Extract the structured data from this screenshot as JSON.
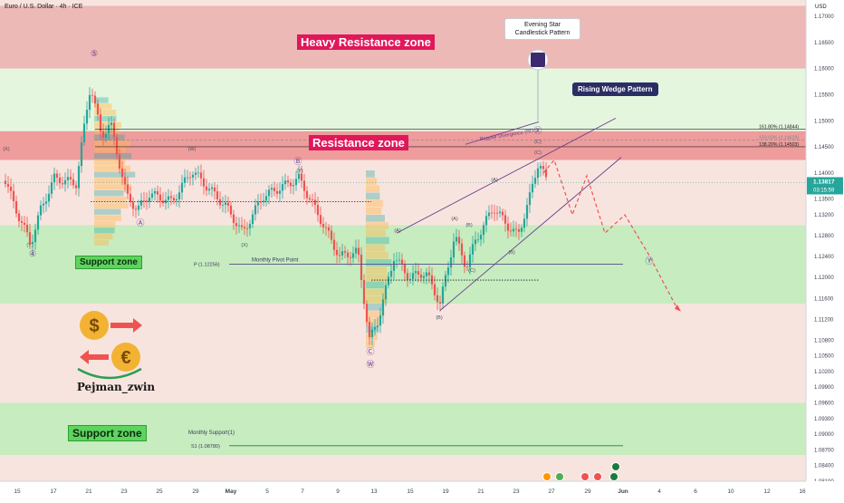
{
  "header": {
    "symbol": "Euro / U.S. Dollar · 4h · ICE"
  },
  "zones": {
    "heavy_resistance": "Heavy Resistance zone",
    "resistance": "Resistance zone",
    "support_upper": "Support zone",
    "support_lower": "Support zone"
  },
  "annotations": {
    "evening_star": "Evening Star Candlestick Pattern",
    "rising_wedge": "Rising Wedge Pattern",
    "regular_divergence": "Regular Divergence (RD-)",
    "monthly_pivot": "Monthly Pivot Point",
    "pivot_label": "P (1.12256)",
    "monthly_support": "Monthly Support(1)",
    "s1_label": "S1 (1.08780)",
    "fib_161": "161.80% (1.14844)",
    "fib_150": "150.00% (1.14628)",
    "fib_138": "138.20% (1.14503)",
    "brand": "Pejman_zwin"
  },
  "price_axis": {
    "currency": "USD",
    "current_price": "1.13817",
    "countdown": "03:15:59",
    "ticks": [
      "1.17000",
      "1.16500",
      "1.16000",
      "1.15500",
      "1.15000",
      "1.14500",
      "1.14000",
      "1.13500",
      "1.13200",
      "1.12800",
      "1.12400",
      "1.12000",
      "1.11600",
      "1.11200",
      "1.10800",
      "1.10500",
      "1.10200",
      "1.09900",
      "1.09600",
      "1.09300",
      "1.09000",
      "1.08700",
      "1.08400",
      "1.08100"
    ]
  },
  "time_axis": {
    "ticks": [
      "15",
      "17",
      "21",
      "23",
      "25",
      "29",
      "May",
      "5",
      "7",
      "9",
      "13",
      "15",
      "19",
      "21",
      "23",
      "27",
      "29",
      "Jun",
      "4",
      "6",
      "10",
      "12",
      "16"
    ]
  },
  "wave_labels": [
    "⑤",
    "(Y)",
    "④",
    "Ⓐ",
    "(X)",
    "(W)",
    "Ⓑ",
    "(Y)",
    "(X)",
    "Ⓒ",
    "Ⓦ",
    "(A)",
    "(B)",
    "(A)",
    "(C)",
    "(B)",
    "(A)",
    "(C)",
    "Ⓧ",
    "(C)",
    "Ⓨ",
    "(B)"
  ],
  "colors": {
    "heavy_resistance": "#ecb9b6",
    "resistance": "#ee9c9c",
    "support": "#c6ecc0",
    "bull": "#26a69a",
    "bear": "#ef5350",
    "accent": "#e0185b",
    "price_tag": "#26a69a"
  },
  "chart_data": {
    "type": "candlestick",
    "title": "Euro / U.S. Dollar · 4h · ICE",
    "y_unit": "USD",
    "ylim": [
      1.081,
      1.172
    ],
    "zones": [
      {
        "name": "Heavy Resistance zone",
        "from": 1.16,
        "to": 1.172
      },
      {
        "name": "Resistance zone",
        "from": 1.1425,
        "to": 1.148
      },
      {
        "name": "Support zone",
        "from": 1.115,
        "to": 1.13
      },
      {
        "name": "Support zone",
        "from": 1.086,
        "to": 1.096
      }
    ],
    "levels": [
      {
        "name": "P (1.12256)",
        "value": 1.12256
      },
      {
        "name": "S1 (1.08780)",
        "value": 1.0878
      },
      {
        "name": "161.80% (1.14844)",
        "value": 1.14844
      },
      {
        "name": "150.00% (1.14628)",
        "value": 1.14628
      },
      {
        "name": "138.20% (1.14503)",
        "value": 1.14503
      }
    ],
    "key_swings": [
      {
        "date": "Apr 21",
        "price": 1.1572,
        "label": "⑤"
      },
      {
        "date": "Apr 29",
        "price": 1.1425,
        "label": "(W)"
      },
      {
        "date": "May 7",
        "price": 1.1395,
        "label": "Ⓑ"
      },
      {
        "date": "May 12",
        "price": 1.1065,
        "label": "Ⓒ"
      },
      {
        "date": "May 19",
        "price": 1.1137,
        "label": "(B)"
      },
      {
        "date": "May 23",
        "price": 1.1375,
        "label": "(A)"
      },
      {
        "date": "May 26",
        "price": 1.142,
        "label": "(C)"
      }
    ],
    "current_price": 1.13817
  }
}
